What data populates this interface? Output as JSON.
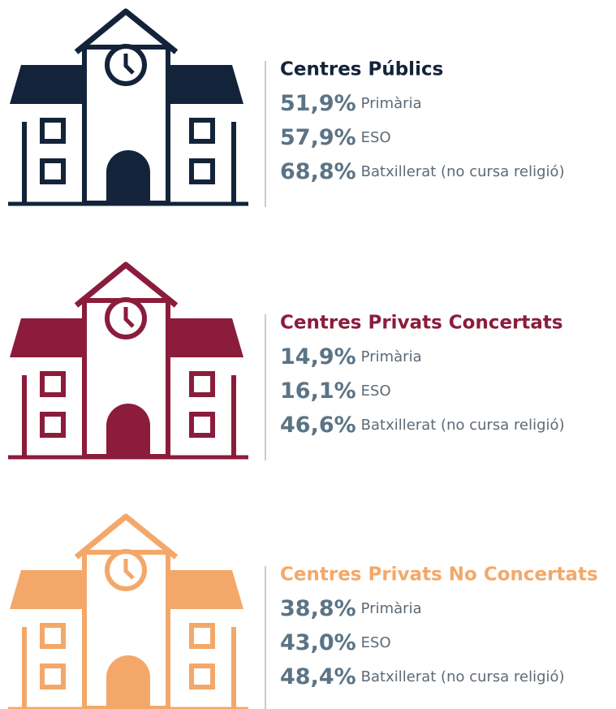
{
  "groups": [
    {
      "title": "Centres Públics",
      "color": "#13233a",
      "rows": [
        {
          "value": "51,9%",
          "label": "Primària"
        },
        {
          "value": "57,9%",
          "label": "ESO"
        },
        {
          "value": "68,8%",
          "label": "Batxillerat (no cursa religió)"
        }
      ]
    },
    {
      "title": "Centres Privats Concertats",
      "color": "#8b1c3c",
      "rows": [
        {
          "value": "14,9%",
          "label": "Primària"
        },
        {
          "value": "16,1%",
          "label": "ESO"
        },
        {
          "value": "46,6%",
          "label": "Batxillerat (no cursa religió)"
        }
      ]
    },
    {
      "title": "Centres Privats No Concertats",
      "color": "#f3a86a",
      "rows": [
        {
          "value": "38,8%",
          "label": "Primària"
        },
        {
          "value": "43,0%",
          "label": "ESO"
        },
        {
          "value": "48,4%",
          "label": "Batxillerat (no cursa religió)"
        }
      ]
    }
  ]
}
